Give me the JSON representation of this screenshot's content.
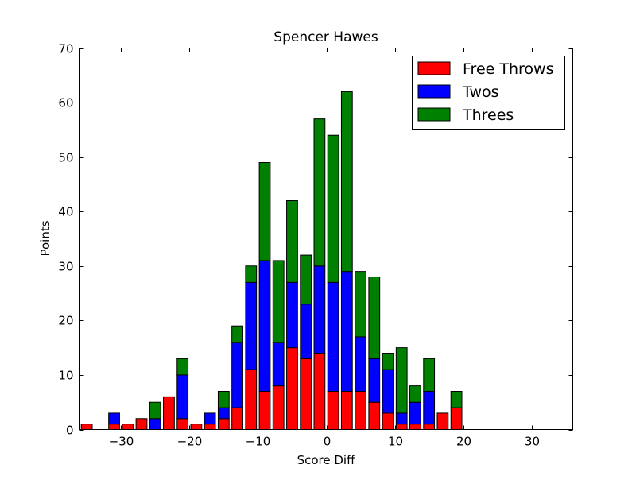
{
  "chart_data": {
    "type": "bar",
    "stacked": true,
    "title": "Spencer Hawes",
    "xlabel": "Score Diff",
    "ylabel": "Points",
    "xlim": [
      -36,
      36
    ],
    "ylim": [
      0,
      70
    ],
    "xticks": [
      -30,
      -20,
      -10,
      0,
      10,
      20,
      30
    ],
    "yticks": [
      0,
      10,
      20,
      30,
      40,
      50,
      60,
      70
    ],
    "xtick_labels": [
      "−30",
      "−20",
      "−10",
      "0",
      "10",
      "20",
      "30"
    ],
    "ytick_labels": [
      "0",
      "10",
      "20",
      "30",
      "40",
      "50",
      "60",
      "70"
    ],
    "bar_width": 1.6,
    "grid": false,
    "legend_position": "top-right",
    "x": [
      -35,
      -33,
      -31,
      -29,
      -27,
      -25,
      -23,
      -21,
      -19,
      -17,
      -15,
      -13,
      -11,
      -9,
      -7,
      -5,
      -3,
      -1,
      1,
      3,
      5,
      7,
      9,
      11,
      13,
      15,
      17,
      19,
      21,
      23,
      25,
      27,
      29,
      31,
      33,
      35
    ],
    "series": [
      {
        "name": "Free Throws",
        "color": "#ff0000",
        "values": [
          1,
          0,
          1,
          1,
          2,
          0,
          6,
          2,
          1,
          1,
          2,
          4,
          11,
          7,
          8,
          15,
          13,
          14,
          7,
          7,
          7,
          5,
          3,
          1,
          1,
          1,
          3,
          4,
          0,
          0,
          0,
          0,
          0,
          0,
          0,
          0
        ]
      },
      {
        "name": "Twos",
        "color": "#0000ff",
        "values": [
          0,
          0,
          2,
          0,
          0,
          2,
          0,
          8,
          0,
          2,
          2,
          12,
          16,
          24,
          8,
          12,
          10,
          16,
          20,
          22,
          10,
          8,
          8,
          2,
          4,
          6,
          0,
          0,
          0,
          0,
          0,
          0,
          0,
          0,
          0,
          0
        ]
      },
      {
        "name": "Threes",
        "color": "#008000",
        "values": [
          0,
          0,
          0,
          0,
          0,
          3,
          0,
          3,
          0,
          0,
          3,
          3,
          3,
          18,
          15,
          15,
          9,
          27,
          27,
          33,
          12,
          15,
          3,
          12,
          3,
          6,
          0,
          3,
          0,
          0,
          0,
          0,
          0,
          0,
          0,
          0
        ]
      }
    ]
  }
}
